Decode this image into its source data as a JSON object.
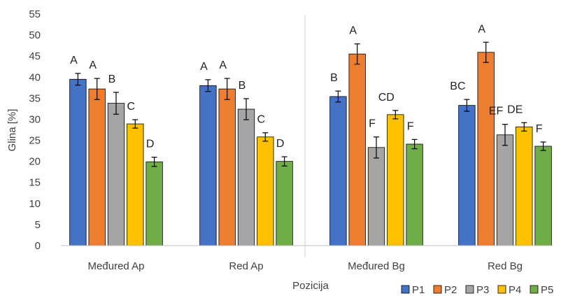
{
  "chart_data": {
    "type": "bar",
    "title": "",
    "xlabel": "Pozicija",
    "ylabel": "Glina [%]",
    "ylim": [
      0,
      55
    ],
    "yticks": [
      0,
      5,
      10,
      15,
      20,
      25,
      30,
      35,
      40,
      45,
      50,
      55
    ],
    "grid": false,
    "legend_position": "bottom-right",
    "categories": [
      "Međured Ap",
      "Red Ap",
      "Međured Bg",
      "Red Bg"
    ],
    "series": [
      {
        "name": "P1",
        "color": "#4472C4",
        "values": [
          39.5,
          38.0,
          35.4,
          33.3
        ],
        "errors": [
          1.4,
          1.4,
          1.3,
          1.4
        ],
        "letters": [
          "A",
          "A",
          "B",
          "BC"
        ]
      },
      {
        "name": "P2",
        "color": "#ED7D31",
        "values": [
          37.2,
          37.2,
          45.5,
          45.9
        ],
        "errors": [
          2.5,
          2.5,
          2.4,
          2.4
        ],
        "letters": [
          "A",
          "A",
          "A",
          "A"
        ]
      },
      {
        "name": "P3",
        "color": "#A5A5A5",
        "values": [
          33.8,
          32.4,
          23.3,
          26.3
        ],
        "errors": [
          2.6,
          2.5,
          2.5,
          2.5
        ],
        "letters": [
          "B",
          "B",
          "F",
          "EF"
        ]
      },
      {
        "name": "P4",
        "color": "#FFC000",
        "values": [
          28.9,
          25.8,
          31.1,
          28.2
        ],
        "errors": [
          1.0,
          1.0,
          1.0,
          1.0
        ],
        "letters": [
          "C",
          "C",
          "CD",
          "DE"
        ]
      },
      {
        "name": "P5",
        "color": "#70AD47",
        "values": [
          19.9,
          20.0,
          24.1,
          23.6
        ],
        "errors": [
          1.1,
          1.1,
          1.1,
          1.0
        ],
        "letters": [
          "D",
          "D",
          "F",
          "F"
        ]
      }
    ]
  }
}
